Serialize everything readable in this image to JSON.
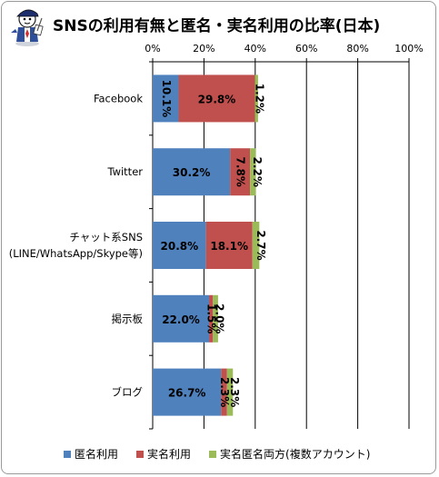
{
  "title": "SNSの利用有無と匿名・実名利用の比率(日本)",
  "colors": {
    "anonymous": "#4f81bd",
    "real_name": "#c0504d",
    "both": "#9bbb59"
  },
  "mascot_icon": "reporter-mascot-icon",
  "chart_data": {
    "type": "bar",
    "orientation": "horizontal",
    "stacked": true,
    "categories": [
      [
        "Facebook"
      ],
      [
        "Twitter"
      ],
      [
        "チャット系SNS",
        "(LINE/WhatsApp/Skype等)"
      ],
      [
        "掲示板"
      ],
      [
        "ブログ"
      ]
    ],
    "series": [
      {
        "name": "匿名利用",
        "values": [
          10.1,
          30.2,
          20.8,
          22.0,
          26.7
        ]
      },
      {
        "name": "実名利用",
        "values": [
          29.8,
          7.8,
          18.1,
          1.5,
          2.3
        ]
      },
      {
        "name": "実名匿名両方(複数アカウント)",
        "values": [
          1.2,
          2.2,
          2.7,
          2.0,
          2.3
        ]
      }
    ],
    "xlim": [
      0,
      100
    ],
    "xticks": [
      "0%",
      "20%",
      "40%",
      "60%",
      "80%",
      "100%"
    ],
    "tick_values": [
      0,
      20,
      40,
      60,
      80,
      100
    ],
    "grid": true,
    "legend": "bottom"
  }
}
